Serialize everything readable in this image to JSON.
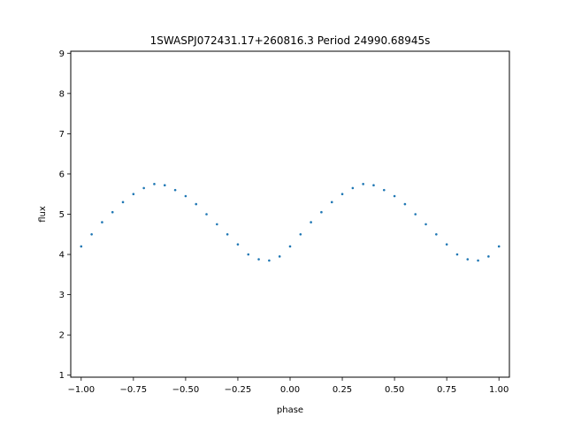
{
  "chart_data": {
    "type": "scatter",
    "title": "1SWASPJ072431.17+260816.3 Period 24990.68945s",
    "xlabel": "phase",
    "ylabel": "flux",
    "xlim": [
      -1.05,
      1.05
    ],
    "ylim": [
      0.95,
      9.05
    ],
    "xticks": [
      -1.0,
      -0.75,
      -0.5,
      -0.25,
      0.0,
      0.25,
      0.5,
      0.75,
      1.0
    ],
    "xtick_labels": [
      "−1.00",
      "−0.75",
      "−0.50",
      "−0.25",
      "0.00",
      "0.25",
      "0.50",
      "0.75",
      "1.00"
    ],
    "yticks": [
      1,
      2,
      3,
      4,
      5,
      6,
      7,
      8,
      9
    ],
    "ytick_labels": [
      "1",
      "2",
      "3",
      "4",
      "5",
      "6",
      "7",
      "8",
      "9"
    ],
    "grid": false,
    "legend": "none",
    "marker_color": "#1f77b4",
    "series": [
      {
        "x": [
          -1.0,
          -0.95,
          -0.9,
          -0.85,
          -0.8,
          -0.75,
          -0.7,
          -0.65,
          -0.6,
          -0.55,
          -0.5,
          -0.45,
          -0.4,
          -0.35,
          -0.3,
          -0.25,
          -0.2,
          -0.15,
          -0.1,
          -0.05,
          0.0,
          0.05,
          0.1,
          0.15,
          0.2,
          0.25,
          0.3,
          0.35,
          0.4,
          0.45,
          0.5,
          0.55,
          0.6,
          0.65,
          0.7,
          0.75,
          0.8,
          0.85,
          0.9,
          0.95,
          1.0
        ],
        "y": [
          4.2,
          4.5,
          4.8,
          5.05,
          5.3,
          5.5,
          5.65,
          5.75,
          5.72,
          5.6,
          5.45,
          5.25,
          5.0,
          4.75,
          4.5,
          4.25,
          4.0,
          3.88,
          3.85,
          3.95,
          4.2,
          4.5,
          4.8,
          5.05,
          5.3,
          5.5,
          5.65,
          5.75,
          5.72,
          5.6,
          5.45,
          5.25,
          5.0,
          4.75,
          4.5,
          4.25,
          4.0,
          3.88,
          3.85,
          3.95,
          4.2
        ]
      }
    ]
  }
}
